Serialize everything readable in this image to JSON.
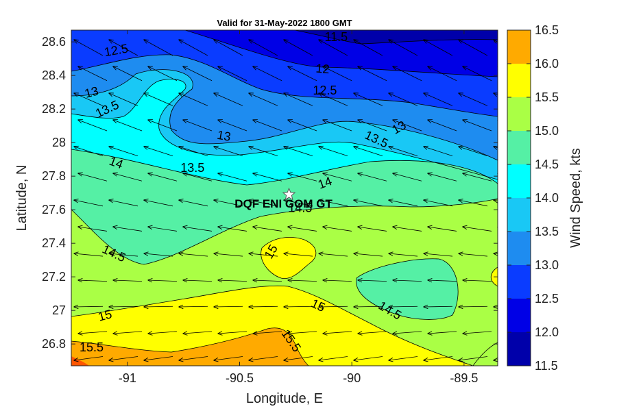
{
  "title": "Valid for 31-May-2022 1800 GMT",
  "xlabel": "Longitude, E",
  "ylabel": "Latitude, N",
  "colorbar_label": "Wind Speed, kts",
  "station": {
    "name": "DQF ENI GOM GT",
    "lon": -90.28,
    "lat": 27.69
  },
  "chart_data": {
    "type": "contour",
    "xlim": [
      -91.25,
      -89.35
    ],
    "ylim": [
      26.67,
      28.67
    ],
    "xticks": [
      -91,
      -90.5,
      -90,
      -89.5
    ],
    "xtick_labels": [
      "-91",
      "-90.5",
      "-90",
      "-89.5"
    ],
    "yticks": [
      26.8,
      27,
      27.2,
      27.4,
      27.6,
      27.8,
      28,
      28.2,
      28.4,
      28.6
    ],
    "ytick_labels": [
      "26.8",
      "27",
      "27.2",
      "27.4",
      "27.6",
      "27.8",
      "28",
      "28.2",
      "28.4",
      "28.6"
    ],
    "colorbar": {
      "levels": [
        11.5,
        12.0,
        12.5,
        13.0,
        13.5,
        14.0,
        14.5,
        15.0,
        15.5,
        16.0,
        16.5
      ],
      "tick_labels": [
        "11.5",
        "12.0",
        "12.5",
        "13.0",
        "13.5",
        "14.0",
        "14.5",
        "15.0",
        "15.5",
        "16.0",
        "16.5"
      ],
      "colors": [
        "#0000aa",
        "#0000e6",
        "#0a3cff",
        "#1e8cf0",
        "#19c8f5",
        "#00ffff",
        "#55f0a5",
        "#aaff45",
        "#ffff00",
        "#ffaa00",
        "#ff5500"
      ]
    },
    "contour_labels": [
      {
        "text": "11.5",
        "lon": -90.07,
        "lat": 28.63,
        "angle": 0
      },
      {
        "text": "12.5",
        "lon": -91.05,
        "lat": 28.55,
        "angle": -10
      },
      {
        "text": "12",
        "lon": -90.13,
        "lat": 28.44,
        "angle": 5
      },
      {
        "text": "12.5",
        "lon": -90.12,
        "lat": 28.31,
        "angle": 0
      },
      {
        "text": "13",
        "lon": -91.16,
        "lat": 28.3,
        "angle": -15
      },
      {
        "text": "13.5",
        "lon": -91.09,
        "lat": 28.2,
        "angle": -25
      },
      {
        "text": "13",
        "lon": -90.57,
        "lat": 28.04,
        "angle": 10
      },
      {
        "text": "13",
        "lon": -89.79,
        "lat": 28.09,
        "angle": -30
      },
      {
        "text": "13.5",
        "lon": -89.89,
        "lat": 28.02,
        "angle": 25
      },
      {
        "text": "14",
        "lon": -91.05,
        "lat": 27.88,
        "angle": 20
      },
      {
        "text": "13.5",
        "lon": -90.71,
        "lat": 27.85,
        "angle": 0
      },
      {
        "text": "14",
        "lon": -90.12,
        "lat": 27.76,
        "angle": -20
      },
      {
        "text": "14.5",
        "lon": -90.23,
        "lat": 27.61,
        "angle": 0
      },
      {
        "text": "15",
        "lon": -90.36,
        "lat": 27.35,
        "angle": -60
      },
      {
        "text": "14.5",
        "lon": -91.06,
        "lat": 27.34,
        "angle": 25
      },
      {
        "text": "15",
        "lon": -90.15,
        "lat": 27.03,
        "angle": 25
      },
      {
        "text": "14.5",
        "lon": -89.83,
        "lat": 27.0,
        "angle": 30
      },
      {
        "text": "15",
        "lon": -91.1,
        "lat": 26.97,
        "angle": -15
      },
      {
        "text": "15.5",
        "lon": -90.27,
        "lat": 26.82,
        "angle": 55
      },
      {
        "text": "15.5",
        "lon": -91.16,
        "lat": 26.78,
        "angle": 0
      }
    ]
  }
}
